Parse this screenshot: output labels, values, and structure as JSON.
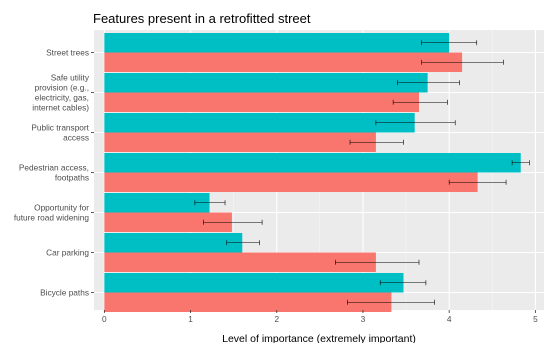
{
  "chart_data": {
    "type": "bar",
    "orientation": "horizontal",
    "title": "Features present in a retrofitted street",
    "xlabel": "Level of importance (extremely important)",
    "ylabel": "",
    "xlim": [
      -0.12,
      5.1
    ],
    "xticks": [
      0,
      1,
      2,
      3,
      4,
      5
    ],
    "grid": true,
    "legend": "none",
    "categories": [
      [
        "Street trees"
      ],
      [
        "Safe utility",
        "provision (e.g.,",
        "electricity, gas,",
        "internet cables)"
      ],
      [
        "Public transport",
        "access"
      ],
      [
        "Pedestrian access,",
        "footpaths"
      ],
      [
        "Opportunity for",
        "future road widening"
      ],
      [
        "Car parking"
      ],
      [
        "Bicycle paths"
      ]
    ],
    "series": [
      {
        "color": "#00bfc4",
        "values": [
          4.0,
          3.75,
          3.6,
          4.83,
          1.22,
          1.6,
          3.47
        ],
        "error_low": [
          3.68,
          3.4,
          3.15,
          4.73,
          1.05,
          1.42,
          3.2
        ],
        "error_high": [
          4.32,
          4.12,
          4.07,
          4.93,
          1.4,
          1.8,
          3.73
        ]
      },
      {
        "color": "#f8766d",
        "values": [
          4.15,
          3.65,
          3.15,
          4.33,
          1.48,
          3.15,
          3.33
        ],
        "error_low": [
          3.68,
          3.35,
          2.85,
          4.0,
          1.15,
          2.68,
          2.82
        ],
        "error_high": [
          4.63,
          3.98,
          3.47,
          4.66,
          1.83,
          3.65,
          3.83
        ]
      }
    ]
  }
}
